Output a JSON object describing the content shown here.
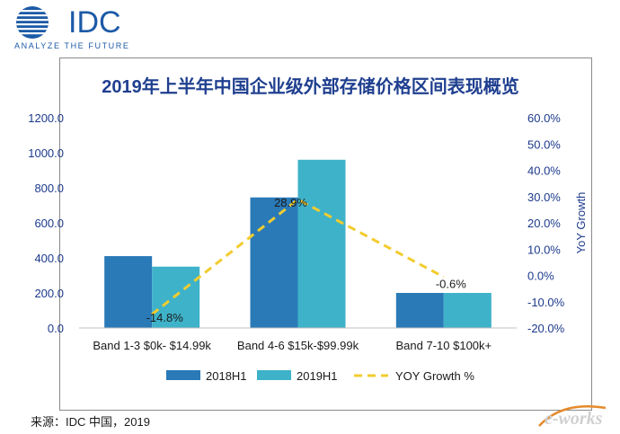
{
  "header": {
    "brand_name": "IDC",
    "brand_tagline": "ANALYZE THE FUTURE"
  },
  "source_note": "来源：IDC 中国，2019",
  "watermark": {
    "text": "e-works"
  },
  "colors": {
    "s2018": "#2a7ab8",
    "s2019": "#3eb2c9",
    "yoy": "#f2cc2f",
    "title": "#1f3f8f",
    "axis_text": "#1c3a8c"
  },
  "chart_data": {
    "type": "bar",
    "title": "2019年上半年中国企业级外部存储价格区间表现概览",
    "categories": [
      "Band 1-3 $0k- $14.99k",
      "Band 4-6 $15k-$99.99k",
      "Band 7-10 $100k+"
    ],
    "series": [
      {
        "name": "2018H1",
        "values": [
          410,
          745,
          200
        ]
      },
      {
        "name": "2019H1",
        "values": [
          350,
          960,
          200
        ]
      }
    ],
    "line_series": {
      "name": "YOY Growth %",
      "values": [
        -14.8,
        28.9,
        -0.6
      ],
      "labels": [
        "-14.8%",
        "28.9%",
        "-0.6%"
      ]
    },
    "ylim": [
      0,
      1200
    ],
    "y_ticks": [
      "0.0",
      "200.0",
      "400.0",
      "600.0",
      "800.0",
      "1000.0",
      "1200.0"
    ],
    "y2label": "YoY Growth",
    "y2lim": [
      -20,
      60
    ],
    "y2_ticks": [
      "-20.0%",
      "-10.0%",
      "0.0%",
      "10.0%",
      "20.0%",
      "30.0%",
      "40.0%",
      "50.0%",
      "60.0%"
    ],
    "legend": "bottom",
    "grid": false
  }
}
